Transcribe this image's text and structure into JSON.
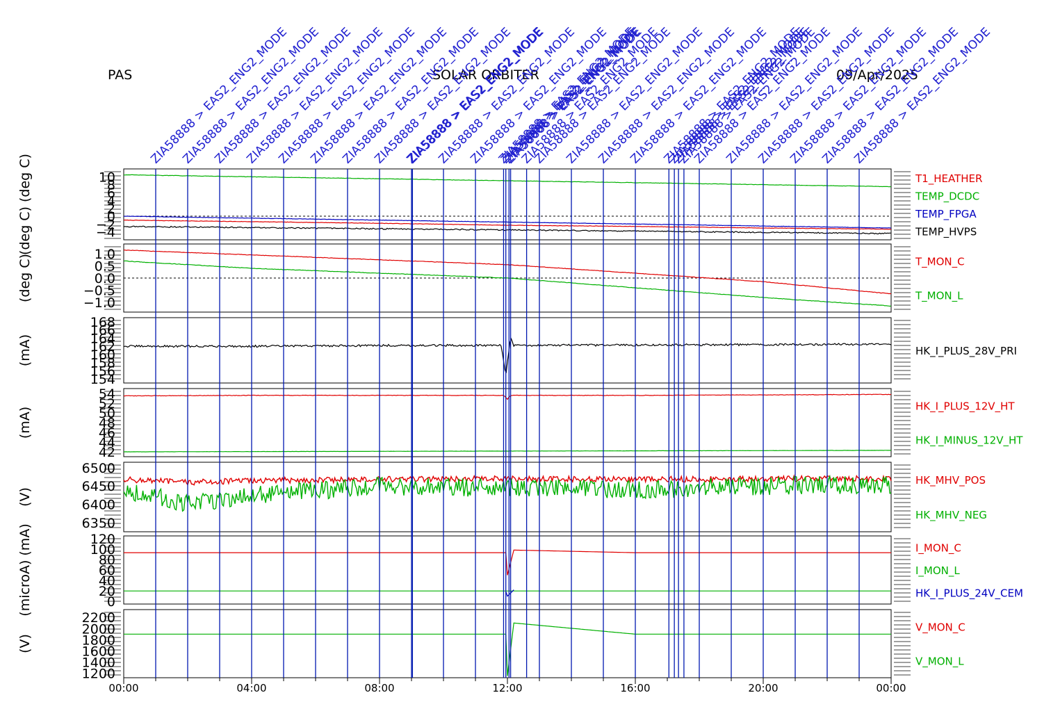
{
  "header": {
    "instrument": "PAS",
    "mission": "SOLAR ORBITER",
    "date": "09/Apr/2025"
  },
  "colors": {
    "red": "#e00000",
    "green": "#00b000",
    "blue": "#0000c0",
    "black": "#000000",
    "event_line": "#0018b0",
    "event_text": "#2020d0"
  },
  "events": {
    "label_prefix": "ZIA58888 > EAS2_ENG2_MODE",
    "times": [
      1.0,
      2.0,
      3.0,
      4.0,
      5.0,
      6.0,
      7.0,
      8.0,
      9.0,
      9.03,
      10.0,
      11.0,
      11.88,
      11.95,
      12.05,
      12.1,
      12.6,
      13.0,
      14.0,
      15.0,
      16.0,
      17.05,
      17.22,
      17.35,
      17.52,
      18.0,
      19.0,
      20.0,
      21.0,
      22.0,
      23.0
    ]
  },
  "chart_data": {
    "type": "line",
    "x_axis": {
      "range_hours": [
        0,
        24
      ],
      "tick_labels": [
        "00:00",
        "04:00",
        "08:00",
        "12:00",
        "16:00",
        "20:00",
        "00:00"
      ]
    },
    "panels": [
      {
        "ylabel": "(deg C)  (deg C)",
        "ylim": [
          -6,
          12
        ],
        "tick_labels": [
          "10",
          "8",
          "6",
          "4",
          "2",
          "0",
          "-2",
          "-4"
        ],
        "zero_line": true,
        "series": [
          {
            "name": "T1_HEATHER",
            "color": "#e00000",
            "x": [
              0,
              4,
              8,
              12,
              16,
              20,
              24
            ],
            "y": [
              -1.0,
              -1.4,
              -1.8,
              -2.3,
              -2.6,
              -3.0,
              -3.3
            ],
            "noise": 0.05
          },
          {
            "name": "TEMP_DCDC",
            "color": "#00b000",
            "x": [
              0,
              4,
              8,
              12,
              16,
              20,
              24
            ],
            "y": [
              10.5,
              10.0,
              9.5,
              9.0,
              8.5,
              8.0,
              7.5
            ],
            "noise": 0.05
          },
          {
            "name": "TEMP_FPGA",
            "color": "#0000c0",
            "x": [
              0,
              4,
              8,
              12,
              16,
              20,
              24
            ],
            "y": [
              0.0,
              -0.5,
              -1.0,
              -1.5,
              -2.0,
              -2.5,
              -3.0
            ],
            "noise": 0.05
          },
          {
            "name": "TEMP_HVPS",
            "color": "#000000",
            "x": [
              0,
              4,
              8,
              12,
              16,
              20,
              24
            ],
            "y": [
              -2.6,
              -2.9,
              -3.2,
              -3.5,
              -3.8,
              -4.1,
              -4.4
            ],
            "noise": 0.15
          }
        ]
      },
      {
        "ylabel": "(deg C)",
        "ylim": [
          -1.4,
          1.4
        ],
        "tick_labels": [
          "1.0",
          "0.5",
          "0.0",
          "-0.5",
          "-1.0"
        ],
        "zero_line": true,
        "series": [
          {
            "name": "T_MON_C",
            "color": "#e00000",
            "x": [
              0,
              4,
              8,
              12,
              16,
              20,
              24
            ],
            "y": [
              1.15,
              0.95,
              0.75,
              0.55,
              0.2,
              -0.15,
              -0.65
            ],
            "noise": 0.01
          },
          {
            "name": "T_MON_L",
            "color": "#00b000",
            "x": [
              0,
              4,
              8,
              12,
              16,
              20,
              24
            ],
            "y": [
              0.7,
              0.4,
              0.2,
              0.0,
              -0.4,
              -0.8,
              -1.15
            ],
            "noise": 0.01
          }
        ]
      },
      {
        "ylabel": "(mA)",
        "ylim": [
          153,
          169
        ],
        "tick_labels": [
          "168",
          "166",
          "164",
          "162",
          "160",
          "158",
          "156",
          "154"
        ],
        "zero_line": false,
        "series": [
          {
            "name": "HK_I_PLUS_28V_PRI",
            "color": "#000000",
            "x": [
              0,
              4,
              8,
              11.8,
              11.95,
              12.0,
              12.1,
              12.2,
              16,
              20,
              24
            ],
            "y": [
              162.0,
              162.0,
              162.2,
              162.2,
              155.0,
              158.0,
              164.5,
              162.2,
              162.3,
              162.4,
              162.5
            ],
            "noise": 0.25
          }
        ]
      },
      {
        "ylabel": "(mA)",
        "ylim": [
          41,
          55
        ],
        "tick_labels": [
          "54",
          "52",
          "50",
          "48",
          "46",
          "44",
          "42"
        ],
        "zero_line": false,
        "series": [
          {
            "name": "HK_I_PLUS_12V_HT",
            "color": "#e00000",
            "x": [
              0,
              4,
              8,
              11.9,
              12.0,
              12.1,
              16,
              20,
              24
            ],
            "y": [
              53.5,
              53.6,
              53.6,
              53.6,
              52.8,
              53.6,
              53.6,
              53.7,
              53.8
            ],
            "noise": 0.05
          },
          {
            "name": "HK_I_MINUS_12V_HT",
            "color": "#00b000",
            "x": [
              0,
              4,
              8,
              12,
              16,
              20,
              24
            ],
            "y": [
              42.0,
              42.05,
              42.1,
              42.15,
              42.2,
              42.25,
              42.3
            ],
            "noise": 0.02
          }
        ]
      },
      {
        "ylabel": "(V)",
        "ylim": [
          6325,
          6515
        ],
        "tick_labels": [
          "6500",
          "6450",
          "6400",
          "6350"
        ],
        "zero_line": false,
        "series": [
          {
            "name": "HK_MHV_POS",
            "color": "#e00000",
            "x": [
              0,
              2,
              4,
              8,
              12,
              16,
              20,
              24
            ],
            "y": [
              6468,
              6460,
              6465,
              6468,
              6470,
              6468,
              6470,
              6470
            ],
            "noise": 8
          },
          {
            "name": "HK_MHV_NEG",
            "color": "#00b000",
            "x": [
              0,
              2,
              4,
              8,
              12,
              16,
              20,
              24
            ],
            "y": [
              6440,
              6400,
              6425,
              6450,
              6445,
              6440,
              6450,
              6455
            ],
            "noise": 25
          }
        ]
      },
      {
        "ylabel": "(microA)  (mA)",
        "ylim": [
          -5,
          125
        ],
        "tick_labels": [
          "120",
          "100",
          "80",
          "60",
          "40",
          "20",
          "0"
        ],
        "zero_line": false,
        "series": [
          {
            "name": "I_MON_C",
            "color": "#e00000",
            "x": [
              0,
              4,
              8,
              11.95,
              12.0,
              12.2,
              16,
              20,
              24
            ],
            "y": [
              93,
              93,
              93,
              93,
              50,
              98,
              93,
              93,
              93
            ],
            "noise": 0
          },
          {
            "name": "I_MON_L",
            "color": "#00b000",
            "x": [
              0,
              4,
              8,
              12,
              16,
              20,
              24
            ],
            "y": [
              20,
              20,
              20,
              20,
              20,
              20,
              20
            ],
            "noise": 0
          },
          {
            "name": "HK_I_PLUS_24V_CEM",
            "color": "#0000c0",
            "x": [
              11.95,
              12.0,
              12.2
            ],
            "y": [
              19,
              10,
              22
            ],
            "noise": 0
          }
        ]
      },
      {
        "ylabel": "(V)",
        "ylim": [
          1120,
          2340
        ],
        "tick_labels": [
          "2200",
          "2000",
          "1800",
          "1600",
          "1400",
          "1200"
        ],
        "zero_line": false,
        "series": [
          {
            "name": "V_MON_C",
            "color": "#e00000",
            "x": [],
            "y": [],
            "noise": 0
          },
          {
            "name": "V_MON_L",
            "color": "#00b000",
            "x": [
              0,
              11.95,
              12.0,
              12.2,
              16,
              20,
              24
            ],
            "y": [
              1900,
              1900,
              1150,
              2100,
              1900,
              1900,
              1900
            ],
            "noise": 0
          }
        ]
      }
    ]
  }
}
